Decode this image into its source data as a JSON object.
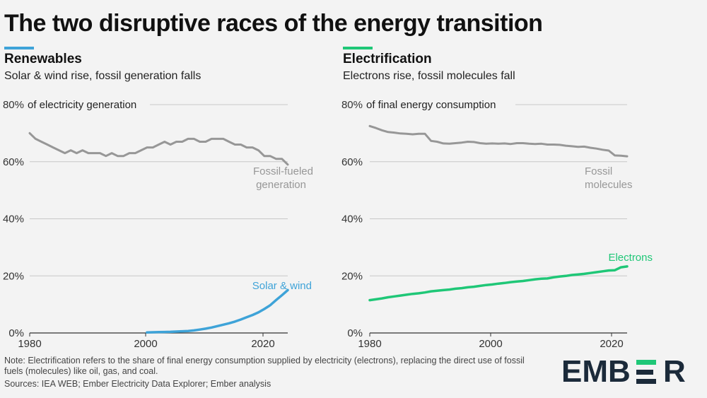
{
  "title": "The two disruptive races of the energy transition",
  "colors": {
    "blue": "#3ea3d8",
    "green": "#1fc777",
    "grey": "#979797",
    "brand_dark": "#1b2a3a",
    "brand_green": "#1fc777"
  },
  "left": {
    "heading": "Renewables",
    "subtitle": "Solar & wind rise, fossil generation falls"
  },
  "right": {
    "heading": "Electrification",
    "subtitle": "Electrons rise, fossil molecules fall"
  },
  "chart_data": [
    {
      "type": "line",
      "title": "Renewables",
      "ylabel": "80% of electricity generation",
      "ylim": [
        0,
        80
      ],
      "xlim": [
        1980,
        2024
      ],
      "yticks": [
        "0%",
        "20%",
        "40%",
        "60%",
        "80%"
      ],
      "xticks": [
        "1980",
        "2000",
        "2020"
      ],
      "series": [
        {
          "name": "Fossil-fueled generation",
          "label_line1": "Fossil-fueled",
          "label_line2": "generation",
          "color": "#979797",
          "x": [
            1980,
            1981,
            1982,
            1983,
            1984,
            1985,
            1986,
            1987,
            1988,
            1989,
            1990,
            1991,
            1992,
            1993,
            1994,
            1995,
            1996,
            1997,
            1998,
            1999,
            2000,
            2001,
            2002,
            2003,
            2004,
            2005,
            2006,
            2007,
            2008,
            2009,
            2010,
            2011,
            2012,
            2013,
            2014,
            2015,
            2016,
            2017,
            2018,
            2019,
            2020,
            2021,
            2022,
            2023,
            2024
          ],
          "values": [
            70,
            68,
            67,
            66,
            65,
            64,
            63,
            64,
            63,
            64,
            63,
            63,
            63,
            62,
            63,
            62,
            62,
            63,
            63,
            64,
            65,
            65,
            66,
            67,
            66,
            67,
            67,
            68,
            68,
            67,
            67,
            68,
            68,
            68,
            67,
            66,
            66,
            65,
            65,
            64,
            62,
            62,
            61,
            61,
            59
          ]
        },
        {
          "name": "Solar & wind",
          "label_line1": "Solar & wind",
          "color": "#3ea3d8",
          "x": [
            2000,
            2001,
            2002,
            2003,
            2004,
            2005,
            2006,
            2007,
            2008,
            2009,
            2010,
            2011,
            2012,
            2013,
            2014,
            2015,
            2016,
            2017,
            2018,
            2019,
            2020,
            2021,
            2022,
            2023,
            2024
          ],
          "values": [
            0.2,
            0.25,
            0.3,
            0.35,
            0.4,
            0.5,
            0.6,
            0.7,
            0.9,
            1.2,
            1.5,
            1.9,
            2.4,
            2.9,
            3.4,
            4.0,
            4.7,
            5.5,
            6.3,
            7.2,
            8.4,
            9.7,
            11.5,
            13.2,
            15.0
          ]
        }
      ]
    },
    {
      "type": "line",
      "title": "Electrification",
      "ylabel": "80% of final energy consumption",
      "ylim": [
        0,
        80
      ],
      "xlim": [
        1980,
        2022
      ],
      "yticks": [
        "0%",
        "20%",
        "40%",
        "60%",
        "80%"
      ],
      "xticks": [
        "1980",
        "2000",
        "2020"
      ],
      "series": [
        {
          "name": "Fossil molecules",
          "label_line1": "Fossil",
          "label_line2": "molecules",
          "color": "#979797",
          "x": [
            1980,
            1981,
            1982,
            1983,
            1984,
            1985,
            1986,
            1987,
            1988,
            1989,
            1990,
            1991,
            1992,
            1993,
            1994,
            1995,
            1996,
            1997,
            1998,
            1999,
            2000,
            2001,
            2002,
            2003,
            2004,
            2005,
            2006,
            2007,
            2008,
            2009,
            2010,
            2011,
            2012,
            2013,
            2014,
            2015,
            2016,
            2017,
            2018,
            2019,
            2020,
            2021,
            2022
          ],
          "values": [
            72.5,
            71.8,
            71.0,
            70.4,
            70.2,
            69.9,
            69.8,
            69.6,
            69.8,
            69.8,
            67.3,
            67.0,
            66.4,
            66.3,
            66.5,
            66.7,
            67.0,
            66.9,
            66.5,
            66.3,
            66.4,
            66.3,
            66.4,
            66.2,
            66.5,
            66.5,
            66.3,
            66.2,
            66.3,
            66.0,
            66.0,
            65.9,
            65.6,
            65.4,
            65.2,
            65.3,
            64.9,
            64.6,
            64.2,
            63.9,
            62.2,
            62.1,
            61.9
          ]
        },
        {
          "name": "Electrons",
          "label_line1": "Electrons",
          "color": "#1fc777",
          "x": [
            1980,
            1981,
            1982,
            1983,
            1984,
            1985,
            1986,
            1987,
            1988,
            1989,
            1990,
            1991,
            1992,
            1993,
            1994,
            1995,
            1996,
            1997,
            1998,
            1999,
            2000,
            2001,
            2002,
            2003,
            2004,
            2005,
            2006,
            2007,
            2008,
            2009,
            2010,
            2011,
            2012,
            2013,
            2014,
            2015,
            2016,
            2017,
            2018,
            2019,
            2020,
            2021,
            2022
          ],
          "values": [
            11.5,
            11.8,
            12.1,
            12.5,
            12.8,
            13.1,
            13.4,
            13.7,
            13.9,
            14.2,
            14.6,
            14.8,
            15.0,
            15.2,
            15.5,
            15.7,
            16.0,
            16.2,
            16.5,
            16.8,
            17.0,
            17.3,
            17.5,
            17.8,
            18.0,
            18.2,
            18.5,
            18.8,
            19.0,
            19.1,
            19.5,
            19.8,
            20.0,
            20.3,
            20.5,
            20.7,
            21.0,
            21.3,
            21.6,
            21.9,
            22.0,
            23.0,
            23.3
          ]
        }
      ]
    }
  ],
  "footer": {
    "note": "Note: Electrification refers to the share of final energy consumption supplied by electricity (electrons), replacing the direct use of fossil fuels (molecules) like oil, gas, and coal.",
    "sources": "Sources: IEA WEB; Ember Electricity Data Explorer; Ember analysis"
  },
  "logo": {
    "part1": "EMB",
    "part2": "R"
  }
}
